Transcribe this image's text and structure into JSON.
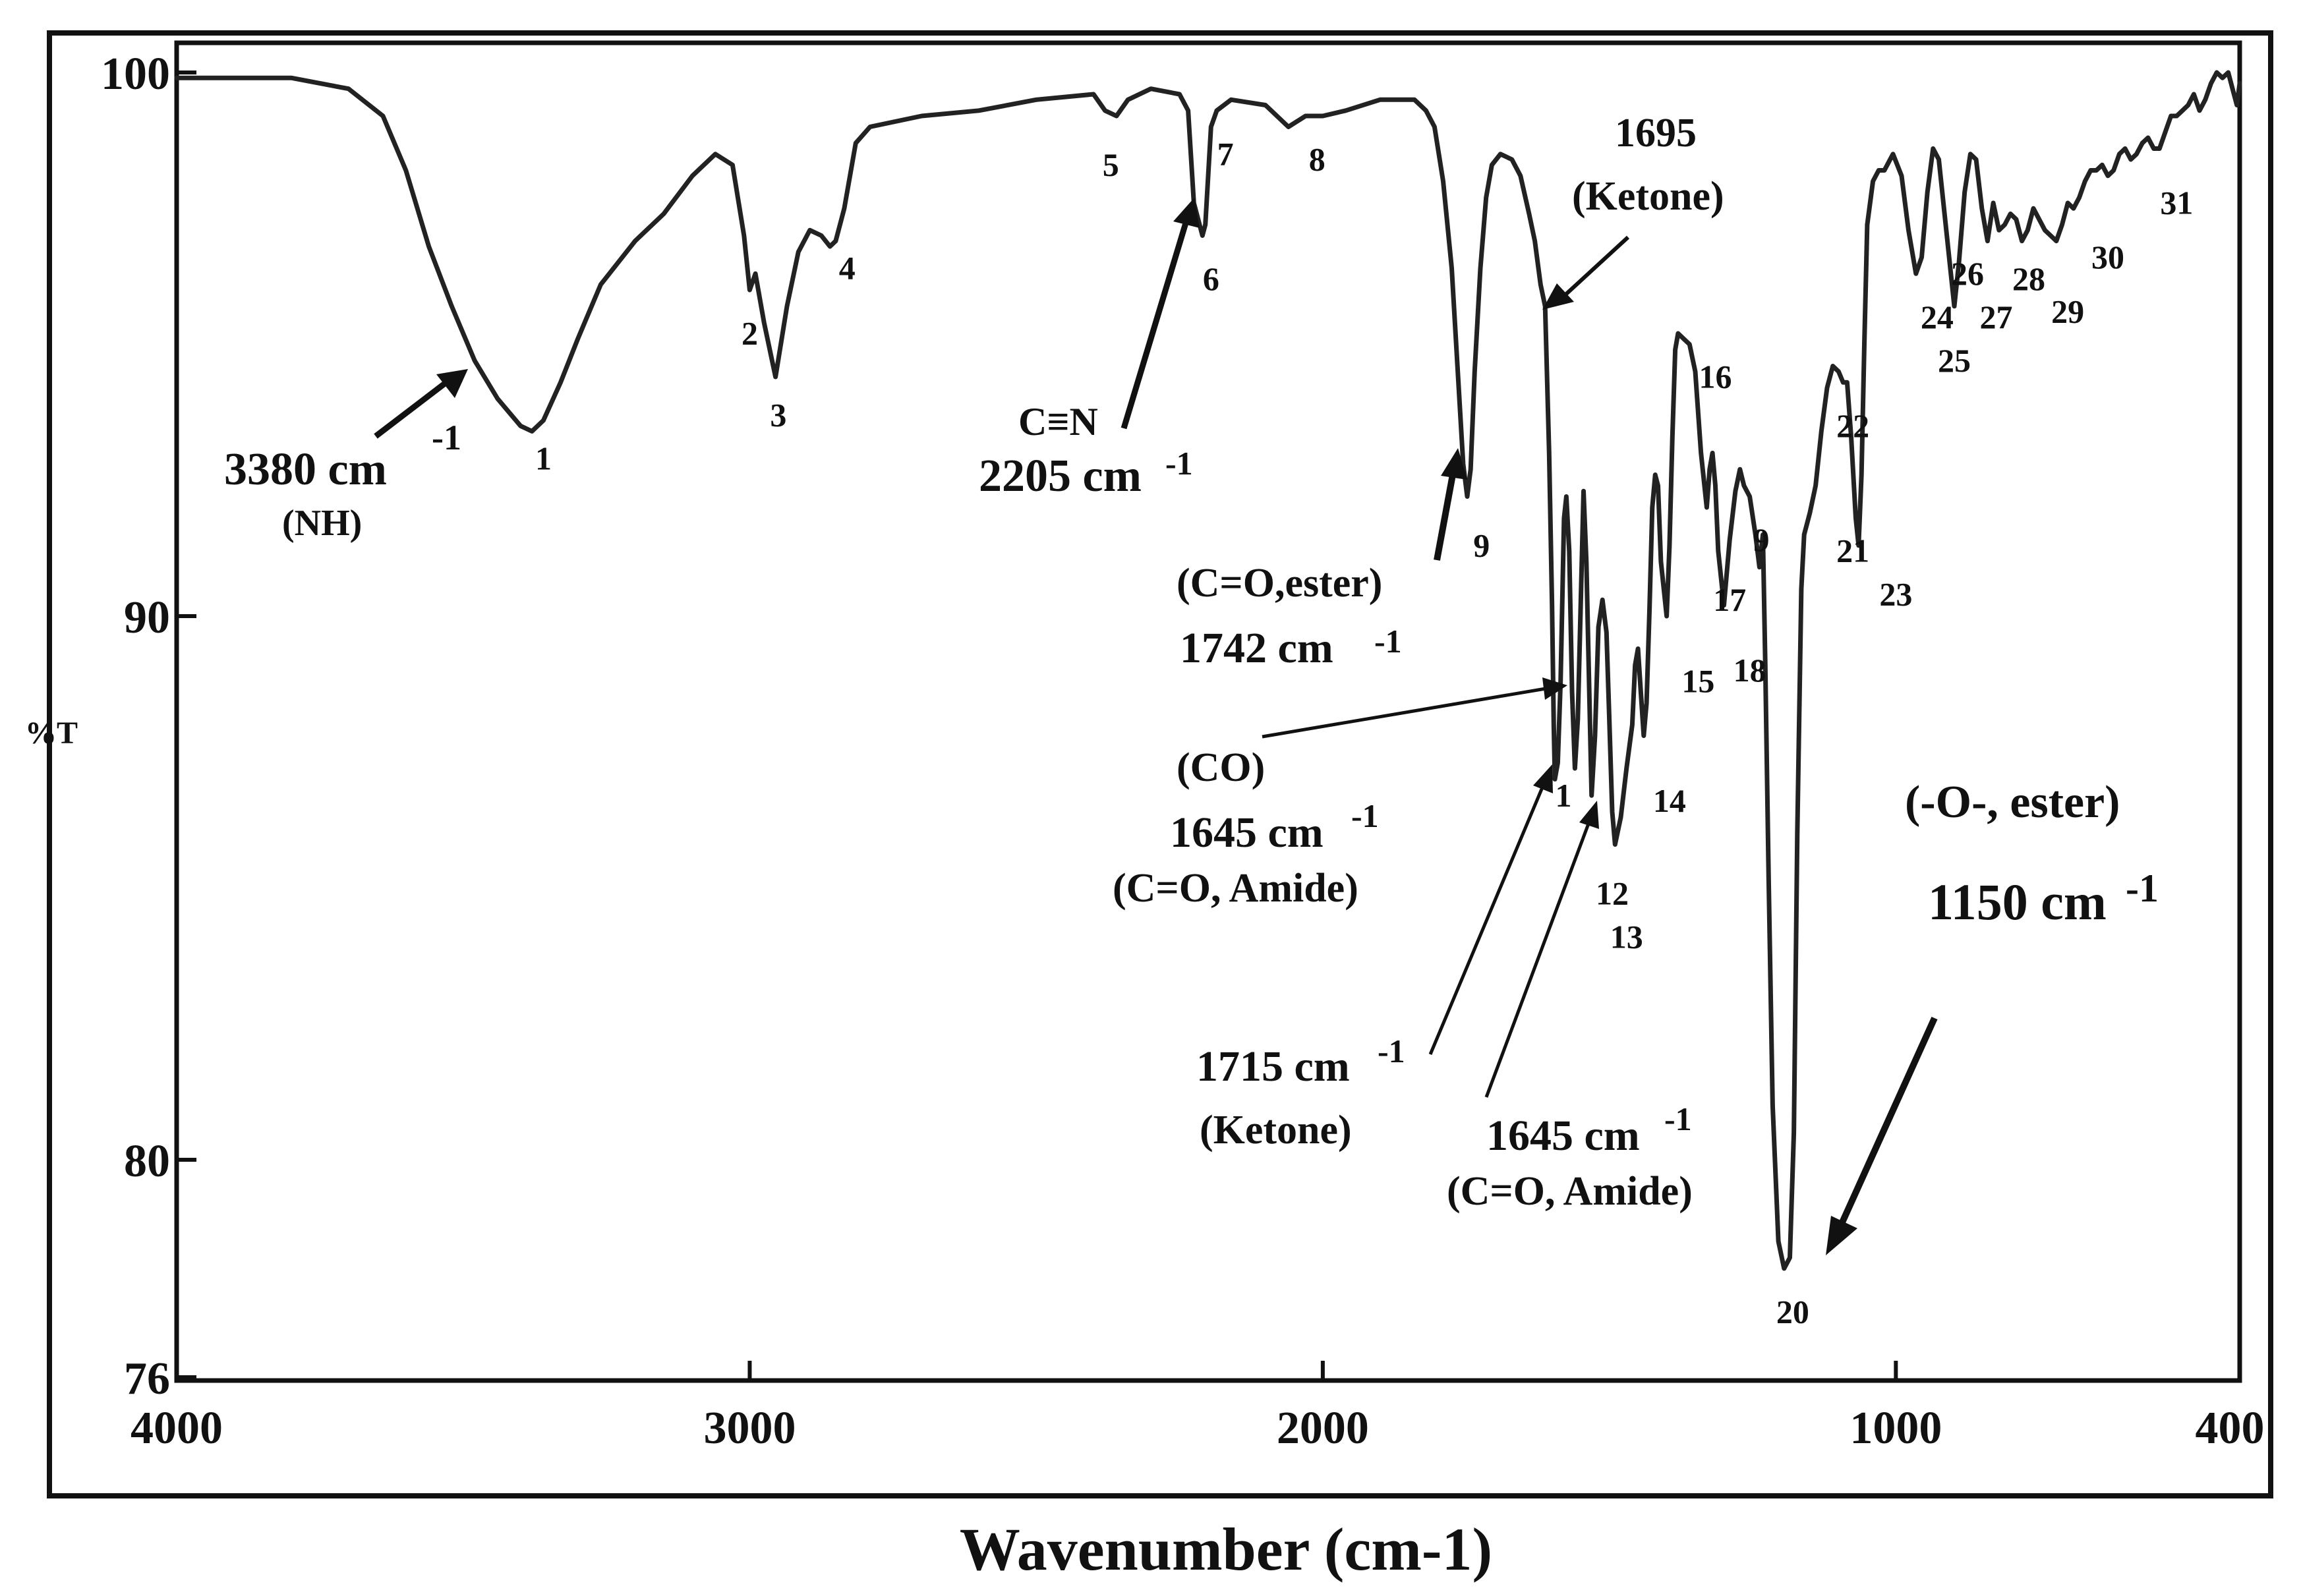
{
  "chart_data": {
    "type": "line",
    "title": "",
    "xlabel": "Wavenumber (cm-1)",
    "ylabel": "%T",
    "xlim": [
      4000,
      400
    ],
    "ylim": [
      76,
      100
    ],
    "x_ticks": [
      {
        "value": 4000,
        "label": "4000"
      },
      {
        "value": 3000,
        "label": "3000"
      },
      {
        "value": 2000,
        "label": "2000"
      },
      {
        "value": 1000,
        "label": "1000"
      },
      {
        "value": 400,
        "label": "400"
      }
    ],
    "y_ticks": [
      {
        "value": 100,
        "label": "100"
      },
      {
        "value": 90,
        "label": "90"
      },
      {
        "value": 80,
        "label": "80"
      },
      {
        "value": 76,
        "label": "76"
      }
    ],
    "grid": false,
    "series": [
      {
        "name": "IR spectrum",
        "points": [
          [
            4000,
            99.9
          ],
          [
            3800,
            99.9
          ],
          [
            3700,
            99.7
          ],
          [
            3640,
            99.2
          ],
          [
            3600,
            98.2
          ],
          [
            3560,
            96.8
          ],
          [
            3520,
            95.7
          ],
          [
            3480,
            94.7
          ],
          [
            3440,
            94.0
          ],
          [
            3400,
            93.5
          ],
          [
            3380,
            93.4
          ],
          [
            3360,
            93.6
          ],
          [
            3330,
            94.3
          ],
          [
            3300,
            95.1
          ],
          [
            3260,
            96.1
          ],
          [
            3200,
            96.9
          ],
          [
            3150,
            97.4
          ],
          [
            3100,
            98.1
          ],
          [
            3060,
            98.5
          ],
          [
            3030,
            98.3
          ],
          [
            3010,
            97.0
          ],
          [
            3000,
            96.0
          ],
          [
            2990,
            96.3
          ],
          [
            2975,
            95.4
          ],
          [
            2955,
            94.4
          ],
          [
            2935,
            95.7
          ],
          [
            2915,
            96.7
          ],
          [
            2895,
            97.1
          ],
          [
            2875,
            97.0
          ],
          [
            2860,
            96.8
          ],
          [
            2850,
            96.9
          ],
          [
            2835,
            97.5
          ],
          [
            2815,
            98.7
          ],
          [
            2790,
            99.0
          ],
          [
            2700,
            99.2
          ],
          [
            2600,
            99.3
          ],
          [
            2500,
            99.5
          ],
          [
            2400,
            99.6
          ],
          [
            2380,
            99.3
          ],
          [
            2360,
            99.2
          ],
          [
            2340,
            99.5
          ],
          [
            2300,
            99.7
          ],
          [
            2250,
            99.6
          ],
          [
            2235,
            99.3
          ],
          [
            2225,
            97.6
          ],
          [
            2210,
            97.0
          ],
          [
            2205,
            97.2
          ],
          [
            2195,
            99.0
          ],
          [
            2185,
            99.3
          ],
          [
            2160,
            99.5
          ],
          [
            2100,
            99.4
          ],
          [
            2060,
            99.0
          ],
          [
            2030,
            99.2
          ],
          [
            2000,
            99.2
          ],
          [
            1960,
            99.3
          ],
          [
            1900,
            99.5
          ],
          [
            1840,
            99.5
          ],
          [
            1820,
            99.3
          ],
          [
            1805,
            99.0
          ],
          [
            1790,
            98.0
          ],
          [
            1775,
            96.4
          ],
          [
            1765,
            94.6
          ],
          [
            1755,
            92.8
          ],
          [
            1748,
            92.2
          ],
          [
            1742,
            92.7
          ],
          [
            1735,
            94.5
          ],
          [
            1725,
            96.4
          ],
          [
            1715,
            97.7
          ],
          [
            1705,
            98.3
          ],
          [
            1690,
            98.5
          ],
          [
            1670,
            98.4
          ],
          [
            1655,
            98.1
          ],
          [
            1640,
            97.4
          ],
          [
            1630,
            96.9
          ],
          [
            1620,
            96.1
          ],
          [
            1612,
            95.7
          ],
          [
            1605,
            93.0
          ],
          [
            1600,
            90.2
          ],
          [
            1597,
            88.0
          ],
          [
            1595,
            87.0
          ],
          [
            1590,
            87.3
          ],
          [
            1585,
            88.8
          ],
          [
            1579,
            91.8
          ],
          [
            1575,
            92.2
          ],
          [
            1570,
            91.2
          ],
          [
            1565,
            88.6
          ],
          [
            1560,
            87.2
          ],
          [
            1555,
            88.1
          ],
          [
            1549,
            90.6
          ],
          [
            1545,
            92.3
          ],
          [
            1540,
            91.0
          ],
          [
            1535,
            88.6
          ],
          [
            1531,
            86.7
          ],
          [
            1525,
            87.8
          ],
          [
            1519,
            89.8
          ],
          [
            1512,
            90.3
          ],
          [
            1505,
            89.7
          ],
          [
            1500,
            88.1
          ],
          [
            1495,
            86.4
          ],
          [
            1490,
            85.8
          ],
          [
            1480,
            86.3
          ],
          [
            1470,
            87.2
          ],
          [
            1460,
            88.0
          ],
          [
            1455,
            89.1
          ],
          [
            1450,
            89.4
          ],
          [
            1445,
            88.6
          ],
          [
            1440,
            87.8
          ],
          [
            1435,
            88.4
          ],
          [
            1430,
            90.1
          ],
          [
            1425,
            92.0
          ],
          [
            1420,
            92.6
          ],
          [
            1415,
            92.4
          ],
          [
            1410,
            91.0
          ],
          [
            1400,
            90.0
          ],
          [
            1395,
            91.3
          ],
          [
            1390,
            93.3
          ],
          [
            1385,
            94.9
          ],
          [
            1380,
            95.2
          ],
          [
            1370,
            95.1
          ],
          [
            1360,
            95.0
          ],
          [
            1350,
            94.5
          ],
          [
            1340,
            93.0
          ],
          [
            1330,
            92.0
          ],
          [
            1325,
            92.7
          ],
          [
            1320,
            93.0
          ],
          [
            1315,
            92.4
          ],
          [
            1310,
            91.2
          ],
          [
            1300,
            90.2
          ],
          [
            1290,
            91.4
          ],
          [
            1280,
            92.3
          ],
          [
            1272,
            92.7
          ],
          [
            1265,
            92.4
          ],
          [
            1255,
            92.2
          ],
          [
            1245,
            91.5
          ],
          [
            1238,
            90.9
          ],
          [
            1232,
            91.5
          ],
          [
            1228,
            89.2
          ],
          [
            1222,
            85.2
          ],
          [
            1215,
            81.0
          ],
          [
            1205,
            78.5
          ],
          [
            1195,
            78.0
          ],
          [
            1185,
            78.2
          ],
          [
            1178,
            80.5
          ],
          [
            1172,
            86.0
          ],
          [
            1165,
            90.5
          ],
          [
            1160,
            91.5
          ],
          [
            1150,
            91.9
          ],
          [
            1140,
            92.4
          ],
          [
            1130,
            93.4
          ],
          [
            1120,
            94.2
          ],
          [
            1110,
            94.6
          ],
          [
            1100,
            94.5
          ],
          [
            1092,
            94.3
          ],
          [
            1085,
            94.3
          ],
          [
            1078,
            93.3
          ],
          [
            1070,
            91.8
          ],
          [
            1065,
            91.3
          ],
          [
            1060,
            92.6
          ],
          [
            1055,
            95.0
          ],
          [
            1050,
            97.2
          ],
          [
            1040,
            98.0
          ],
          [
            1030,
            98.2
          ],
          [
            1020,
            98.2
          ],
          [
            1005,
            98.5
          ],
          [
            990,
            98.1
          ],
          [
            978,
            97.1
          ],
          [
            965,
            96.3
          ],
          [
            955,
            96.6
          ],
          [
            945,
            97.8
          ],
          [
            935,
            98.6
          ],
          [
            925,
            98.4
          ],
          [
            915,
            97.4
          ],
          [
            905,
            96.4
          ],
          [
            898,
            95.7
          ],
          [
            890,
            96.5
          ],
          [
            880,
            97.8
          ],
          [
            870,
            98.5
          ],
          [
            860,
            98.4
          ],
          [
            850,
            97.5
          ],
          [
            840,
            96.9
          ],
          [
            830,
            97.6
          ],
          [
            820,
            97.1
          ],
          [
            810,
            97.2
          ],
          [
            800,
            97.4
          ],
          [
            790,
            97.3
          ],
          [
            780,
            96.9
          ],
          [
            770,
            97.1
          ],
          [
            760,
            97.5
          ],
          [
            750,
            97.3
          ],
          [
            740,
            97.1
          ],
          [
            730,
            97.0
          ],
          [
            720,
            96.9
          ],
          [
            710,
            97.2
          ],
          [
            700,
            97.6
          ],
          [
            690,
            97.5
          ],
          [
            680,
            97.7
          ],
          [
            670,
            98.0
          ],
          [
            660,
            98.2
          ],
          [
            650,
            98.2
          ],
          [
            640,
            98.3
          ],
          [
            630,
            98.1
          ],
          [
            620,
            98.2
          ],
          [
            610,
            98.5
          ],
          [
            600,
            98.6
          ],
          [
            590,
            98.4
          ],
          [
            580,
            98.5
          ],
          [
            570,
            98.7
          ],
          [
            560,
            98.8
          ],
          [
            550,
            98.6
          ],
          [
            540,
            98.6
          ],
          [
            530,
            98.9
          ],
          [
            520,
            99.2
          ],
          [
            510,
            99.2
          ],
          [
            500,
            99.3
          ],
          [
            490,
            99.4
          ],
          [
            480,
            99.6
          ],
          [
            470,
            99.3
          ],
          [
            460,
            99.5
          ],
          [
            450,
            99.8
          ],
          [
            440,
            100.0
          ],
          [
            430,
            99.9
          ],
          [
            420,
            100.0
          ],
          [
            410,
            99.6
          ],
          [
            405,
            99.4
          ],
          [
            400,
            99.8
          ]
        ]
      }
    ],
    "peak_labels": [
      {
        "text": "1",
        "x": 3360,
        "y": 92.7
      },
      {
        "text": "2",
        "x": 3000,
        "y": 95.0
      },
      {
        "text": "3",
        "x": 2950,
        "y": 93.5
      },
      {
        "text": "4",
        "x": 2830,
        "y": 96.2
      },
      {
        "text": "5",
        "x": 2370,
        "y": 98.1
      },
      {
        "text": "6",
        "x": 2195,
        "y": 96.0
      },
      {
        "text": "7",
        "x": 2170,
        "y": 98.3
      },
      {
        "text": "8",
        "x": 2010,
        "y": 98.2
      },
      {
        "text": "9",
        "x": 1723,
        "y": 91.1
      },
      {
        "text": "1",
        "x": 1580,
        "y": 86.5
      },
      {
        "text": "12",
        "x": 1495,
        "y": 84.7
      },
      {
        "text": "13",
        "x": 1470,
        "y": 83.9
      },
      {
        "text": "14",
        "x": 1395,
        "y": 86.4
      },
      {
        "text": "15",
        "x": 1345,
        "y": 88.6
      },
      {
        "text": "16",
        "x": 1315,
        "y": 94.2
      },
      {
        "text": "17",
        "x": 1290,
        "y": 90.1
      },
      {
        "text": "9",
        "x": 1235,
        "y": 91.2
      },
      {
        "text": "18",
        "x": 1255,
        "y": 88.8
      },
      {
        "text": "21",
        "x": 1075,
        "y": 91.0
      },
      {
        "text": "22",
        "x": 1075,
        "y": 93.3
      },
      {
        "text": "23",
        "x": 1000,
        "y": 90.2
      },
      {
        "text": "20",
        "x": 1180,
        "y": 77.0
      },
      {
        "text": "24",
        "x": 928,
        "y": 95.3
      },
      {
        "text": "25",
        "x": 898,
        "y": 94.5
      },
      {
        "text": "26",
        "x": 875,
        "y": 96.1
      },
      {
        "text": "27",
        "x": 825,
        "y": 95.3
      },
      {
        "text": "28",
        "x": 768,
        "y": 96.0
      },
      {
        "text": "29",
        "x": 700,
        "y": 95.4
      },
      {
        "text": "30",
        "x": 630,
        "y": 96.4
      },
      {
        "text": "31",
        "x": 510,
        "y": 97.4
      }
    ],
    "annotations": [
      {
        "lines": [
          "3380 cm",
          "(NH)"
        ],
        "superscript": "-1"
      },
      {
        "lines": [
          "C≡N",
          "2205 cm"
        ],
        "superscript": "-1"
      },
      {
        "lines": [
          "1695",
          "(Ketone)"
        ]
      },
      {
        "lines": [
          "(C=O,ester)",
          "1742 cm"
        ],
        "superscript": "-1"
      },
      {
        "lines": [
          "(CO)",
          "1645 cm",
          "(C=O, Amide)"
        ],
        "superscript": "-1"
      },
      {
        "lines": [
          "1715 cm",
          "(Ketone)"
        ],
        "superscript": "-1"
      },
      {
        "lines": [
          "1645 cm",
          "(C=O, Amide)"
        ],
        "superscript": "-1"
      },
      {
        "lines": [
          "(-O-, ester)",
          "1150 cm"
        ],
        "superscript": "-1"
      }
    ]
  }
}
